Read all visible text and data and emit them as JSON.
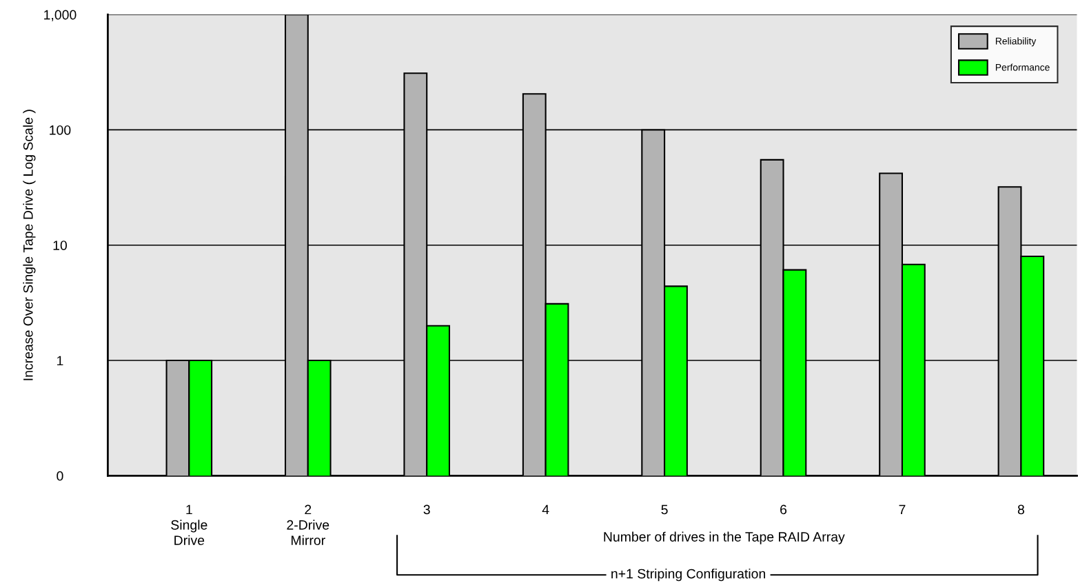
{
  "chart_data": {
    "type": "bar",
    "categories": [
      "1\nSingle\nDrive",
      "2\n2-Drive\nMirror",
      "3",
      "4",
      "5",
      "6",
      "7",
      "8"
    ],
    "series": [
      {
        "name": "Reliability",
        "color": "#b3b3b3",
        "values": [
          1,
          1000,
          310,
          205,
          100,
          55,
          42,
          32
        ]
      },
      {
        "name": "Performance",
        "color": "#00ff00",
        "values": [
          1,
          1,
          2,
          3.1,
          4.4,
          6.1,
          6.8,
          8
        ]
      }
    ],
    "ylabel": "Increase Over Single Tape Drive ( Log Scale )",
    "log": "y",
    "ylim": [
      0.1,
      1000
    ],
    "yticks": [
      {
        "value": 0.1,
        "label": "0"
      },
      1,
      10,
      100,
      {
        "value": 1000,
        "label": "1,000"
      }
    ],
    "grid": "y",
    "legend": "top right",
    "annotations": [
      "Number of drives in the Tape RAID Array",
      "n+1 Striping Configuration"
    ]
  }
}
